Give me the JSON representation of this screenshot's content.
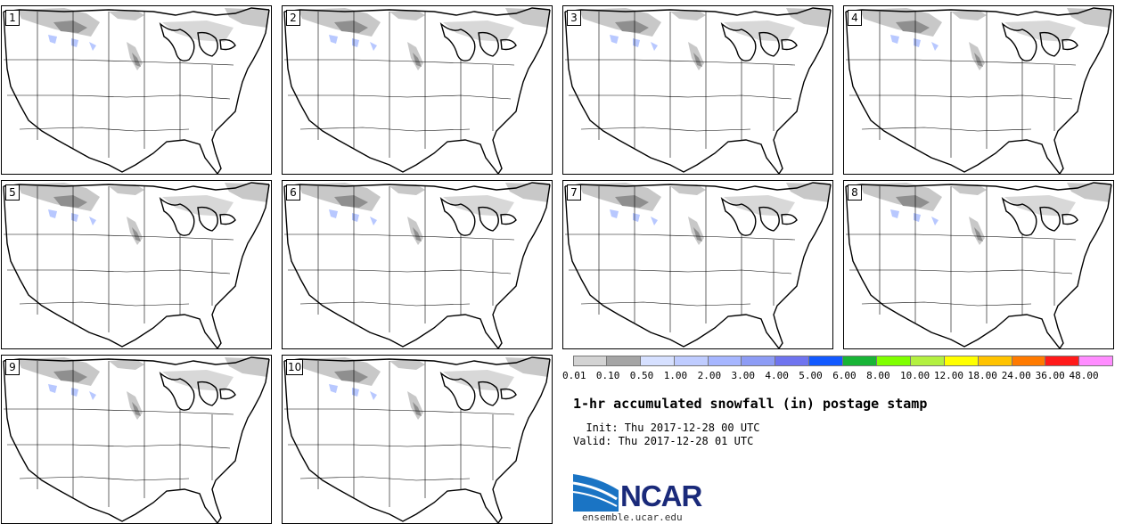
{
  "panels": [
    {
      "label": "1"
    },
    {
      "label": "2"
    },
    {
      "label": "3"
    },
    {
      "label": "4"
    },
    {
      "label": "5"
    },
    {
      "label": "6"
    },
    {
      "label": "7"
    },
    {
      "label": "8"
    },
    {
      "label": "9"
    },
    {
      "label": "10"
    }
  ],
  "legend": {
    "colors": [
      "#d3d3d3",
      "#a5a5a5",
      "#d6e0ff",
      "#bfccff",
      "#a6b6ff",
      "#8d9cf5",
      "#6f74ef",
      "#1259ff",
      "#18b436",
      "#7fff00",
      "#b3f040",
      "#ffff00",
      "#ffc300",
      "#ff7a00",
      "#ff1a1a",
      "#ff8cff"
    ],
    "ticks": [
      "0.01",
      "0.10",
      "0.50",
      "1.00",
      "2.00",
      "3.00",
      "4.00",
      "5.00",
      "6.00",
      "8.00",
      "10.00",
      "12.00",
      "18.00",
      "24.00",
      "36.00",
      "48.00"
    ]
  },
  "title": "1-hr accumulated snowfall (in) postage stamp",
  "init": "  Init: Thu 2017-12-28 00 UTC",
  "valid": "Valid: Thu 2017-12-28 01 UTC",
  "logo_text": "NCAR",
  "url": "ensemble.ucar.edu"
}
